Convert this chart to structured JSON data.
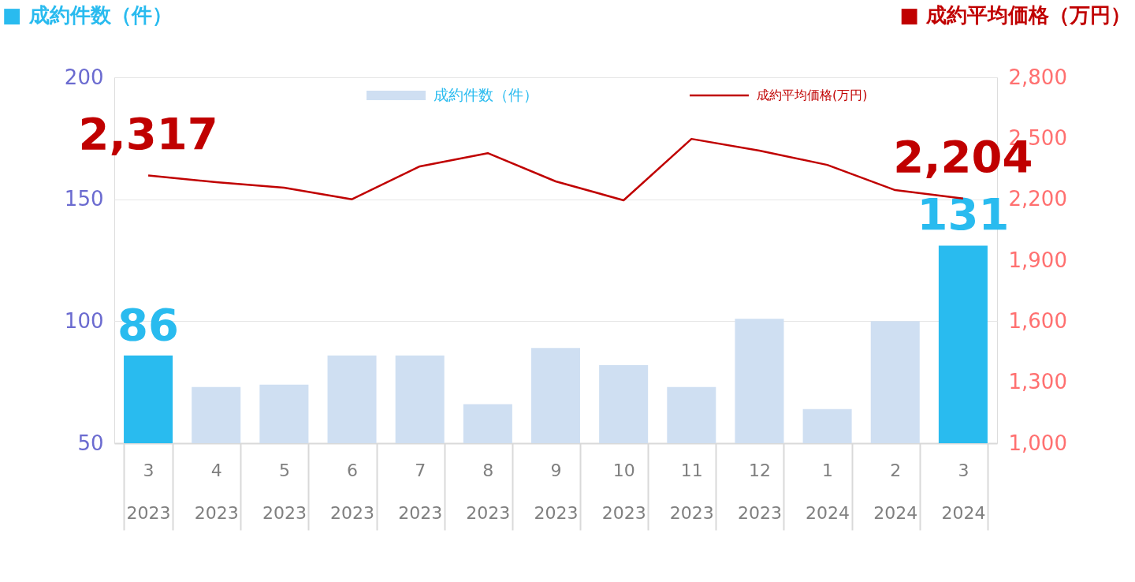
{
  "chart_data": {
    "type": "bar",
    "ylabel": "■ 成約件数（件）",
    "y2label": "■ 成約平均価格（万円）",
    "categories": [
      "3\n2023",
      "4\n2023",
      "5\n2023",
      "6\n2023",
      "7\n2023",
      "8\n2023",
      "9\n2023",
      "10\n2023",
      "11\n2023",
      "12\n2023",
      "1\n2024",
      "2\n2024",
      "3\n2024"
    ],
    "series": [
      {
        "name": "成約件数（件）",
        "color": "#cfdff2",
        "colors": [
          "#29bbef",
          "#cfdff2",
          "#cfdff2",
          "#cfdff2",
          "#cfdff2",
          "#cfdff2",
          "#cfdff2",
          "#cfdff2",
          "#cfdff2",
          "#cfdff2",
          "#cfdff2",
          "#cfdff2",
          "#29bbef"
        ],
        "values": [
          86,
          73,
          74,
          86,
          86,
          66,
          89,
          82,
          73,
          101,
          64,
          100,
          131
        ],
        "value_labels": [
          "86",
          null,
          null,
          null,
          null,
          null,
          null,
          null,
          null,
          null,
          null,
          null,
          "131"
        ]
      },
      {
        "name": "成約平均価格(万円)",
        "type": "line",
        "axis": "y2",
        "color": "#c00000",
        "values": [
          2317,
          2284,
          2257,
          2200,
          2362,
          2427,
          2288,
          2195,
          2497,
          2439,
          2369,
          2245,
          2204
        ],
        "value_labels": [
          "2,317",
          null,
          null,
          null,
          null,
          null,
          null,
          null,
          null,
          null,
          null,
          null,
          "2,204"
        ]
      }
    ],
    "ylim": [
      50,
      200
    ],
    "yticks": [
      50,
      100,
      150,
      200
    ],
    "y2lim": [
      1000,
      2800
    ],
    "y2ticks": [
      {
        "value": 1000,
        "label": "1,000"
      },
      {
        "value": 1300,
        "label": "1,300"
      },
      {
        "value": 1600,
        "label": "1,600"
      },
      {
        "value": 1900,
        "label": "1,900"
      },
      {
        "value": 2200,
        "label": "2,200"
      },
      {
        "value": 2500,
        "label": "2,500"
      },
      {
        "value": 2800,
        "label": "2,800"
      }
    ],
    "grid": "y",
    "legend": "top",
    "line_style": "solid",
    "marker": "none"
  }
}
